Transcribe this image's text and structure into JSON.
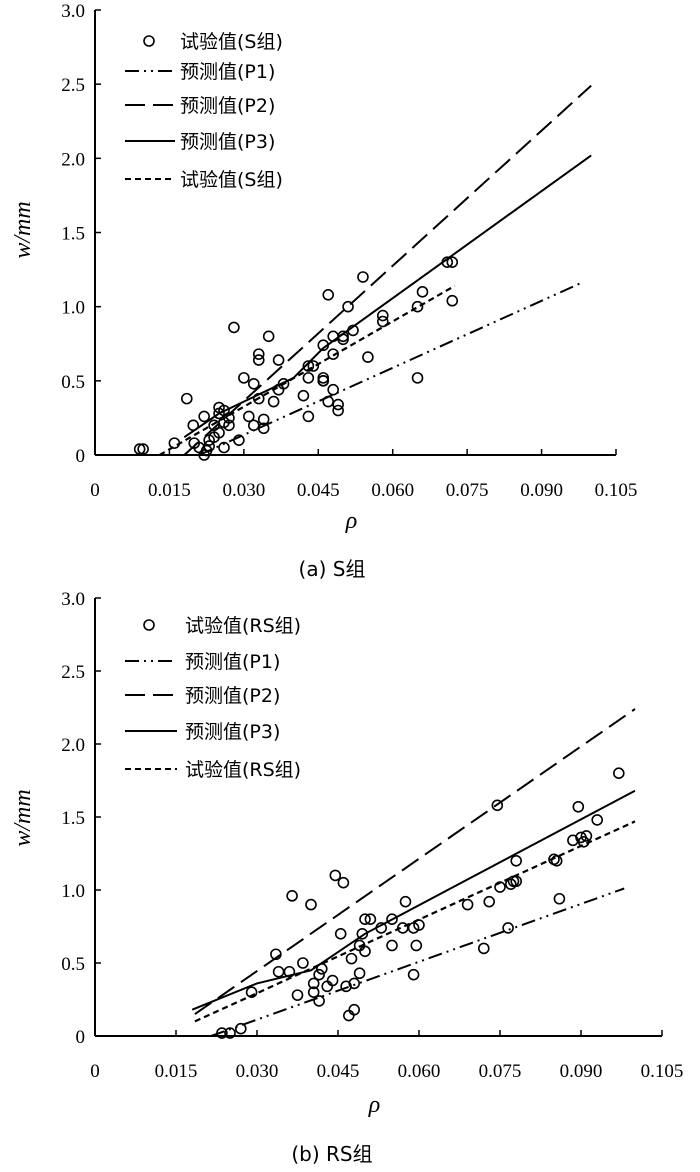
{
  "chart_data": [
    {
      "type": "scatter",
      "panel_id": "a",
      "caption": "(a) S组",
      "xlabel": "ρ",
      "ylabel": "w/mm",
      "xlim": [
        0,
        0.105
      ],
      "ylim": [
        0,
        3.0
      ],
      "x_ticks": [
        0,
        0.015,
        0.03,
        0.045,
        0.06,
        0.075,
        0.09,
        0.105
      ],
      "x_tick_labels": [
        "0",
        "0.015",
        "0.030",
        "0.045",
        "0.060",
        "0.075",
        "0.090",
        "0.105"
      ],
      "y_ticks": [
        0,
        0.5,
        1.0,
        1.5,
        2.0,
        2.5,
        3.0
      ],
      "y_tick_labels": [
        "0",
        "0.5",
        "1.0",
        "1.5",
        "2.0",
        "2.5",
        "3.0"
      ],
      "legend_position": "top-left",
      "series": [
        {
          "name": "试验值(S组)",
          "kind": "scatter",
          "marker": "open-circle",
          "points": [
            [
              0.009,
              0.04
            ],
            [
              0.0097,
              0.04
            ],
            [
              0.016,
              0.08
            ],
            [
              0.0185,
              0.38
            ],
            [
              0.0198,
              0.2
            ],
            [
              0.02,
              0.08
            ],
            [
              0.021,
              0.05
            ],
            [
              0.022,
              0.26
            ],
            [
              0.022,
              0.0
            ],
            [
              0.0225,
              0.03
            ],
            [
              0.023,
              0.1
            ],
            [
              0.023,
              0.06
            ],
            [
              0.024,
              0.12
            ],
            [
              0.024,
              0.2
            ],
            [
              0.025,
              0.15
            ],
            [
              0.025,
              0.28
            ],
            [
              0.025,
              0.32
            ],
            [
              0.026,
              0.22
            ],
            [
              0.026,
              0.3
            ],
            [
              0.026,
              0.05
            ],
            [
              0.027,
              0.2
            ],
            [
              0.027,
              0.25
            ],
            [
              0.028,
              0.86
            ],
            [
              0.029,
              0.1
            ],
            [
              0.03,
              0.52
            ],
            [
              0.031,
              0.26
            ],
            [
              0.032,
              0.48
            ],
            [
              0.032,
              0.2
            ],
            [
              0.033,
              0.68
            ],
            [
              0.033,
              0.64
            ],
            [
              0.033,
              0.38
            ],
            [
              0.034,
              0.24
            ],
            [
              0.034,
              0.18
            ],
            [
              0.035,
              0.8
            ],
            [
              0.036,
              0.36
            ],
            [
              0.037,
              0.64
            ],
            [
              0.037,
              0.44
            ],
            [
              0.038,
              0.48
            ],
            [
              0.042,
              0.4
            ],
            [
              0.043,
              0.6
            ],
            [
              0.043,
              0.52
            ],
            [
              0.043,
              0.26
            ],
            [
              0.044,
              0.6
            ],
            [
              0.046,
              0.74
            ],
            [
              0.046,
              0.5
            ],
            [
              0.046,
              0.52
            ],
            [
              0.046,
              0.5
            ],
            [
              0.047,
              1.08
            ],
            [
              0.047,
              0.36
            ],
            [
              0.048,
              0.8
            ],
            [
              0.048,
              0.44
            ],
            [
              0.048,
              0.68
            ],
            [
              0.049,
              0.34
            ],
            [
              0.049,
              0.3
            ],
            [
              0.05,
              0.78
            ],
            [
              0.05,
              0.8
            ],
            [
              0.051,
              1.0
            ],
            [
              0.052,
              0.84
            ],
            [
              0.054,
              1.2
            ],
            [
              0.055,
              0.66
            ],
            [
              0.058,
              0.9
            ],
            [
              0.058,
              0.94
            ],
            [
              0.065,
              1.0
            ],
            [
              0.066,
              1.1
            ],
            [
              0.065,
              0.52
            ],
            [
              0.071,
              1.3
            ],
            [
              0.072,
              1.3
            ],
            [
              0.072,
              1.04
            ]
          ]
        },
        {
          "name": "预测值(P1)",
          "kind": "line",
          "style": "dash-dot-dot",
          "points": [
            [
              0.021,
              0.0
            ],
            [
              0.098,
              1.16
            ]
          ]
        },
        {
          "name": "预测值(P2)",
          "kind": "line",
          "style": "long-dash",
          "points": [
            [
              0.018,
              0.0
            ],
            [
              0.1,
              2.49
            ]
          ]
        },
        {
          "name": "预测值(P3)",
          "kind": "line",
          "style": "solid",
          "points": [
            [
              0.018,
              0.12
            ],
            [
              0.025,
              0.28
            ],
            [
              0.04,
              0.52
            ],
            [
              0.046,
              0.72
            ],
            [
              0.1,
              2.02
            ]
          ]
        },
        {
          "name": "试验值(S组)",
          "kind": "line",
          "style": "short-dash",
          "points": [
            [
              0.013,
              0.0
            ],
            [
              0.0725,
              1.14
            ]
          ]
        }
      ]
    },
    {
      "type": "scatter",
      "panel_id": "b",
      "caption": "(b) RS组",
      "xlabel": "ρ",
      "ylabel": "w/mm",
      "xlim": [
        0,
        0.105
      ],
      "ylim": [
        0,
        3.0
      ],
      "x_ticks": [
        0,
        0.015,
        0.03,
        0.045,
        0.06,
        0.075,
        0.09,
        0.105
      ],
      "x_tick_labels": [
        "0",
        "0.015",
        "0.030",
        "0.045",
        "0.060",
        "0.075",
        "0.090",
        "0.105"
      ],
      "y_ticks": [
        0,
        0.5,
        1.0,
        1.5,
        2.0,
        2.5,
        3.0
      ],
      "y_tick_labels": [
        "0",
        "0.5",
        "1.0",
        "1.5",
        "2.0",
        "2.5",
        "3.0"
      ],
      "legend_position": "top-left",
      "series": [
        {
          "name": "试验值(RS组)",
          "kind": "scatter",
          "marker": "open-circle",
          "points": [
            [
              0.0235,
              0.02
            ],
            [
              0.025,
              0.02
            ],
            [
              0.027,
              0.05
            ],
            [
              0.029,
              0.3
            ],
            [
              0.0335,
              0.56
            ],
            [
              0.034,
              0.44
            ],
            [
              0.036,
              0.44
            ],
            [
              0.0365,
              0.96
            ],
            [
              0.0375,
              0.28
            ],
            [
              0.0385,
              0.5
            ],
            [
              0.04,
              0.9
            ],
            [
              0.0405,
              0.36
            ],
            [
              0.0405,
              0.3
            ],
            [
              0.0415,
              0.42
            ],
            [
              0.0415,
              0.24
            ],
            [
              0.042,
              0.46
            ],
            [
              0.043,
              0.34
            ],
            [
              0.044,
              0.38
            ],
            [
              0.0445,
              1.1
            ],
            [
              0.0455,
              0.7
            ],
            [
              0.046,
              1.05
            ],
            [
              0.0465,
              0.34
            ],
            [
              0.047,
              0.14
            ],
            [
              0.0475,
              0.53
            ],
            [
              0.048,
              0.36
            ],
            [
              0.048,
              0.18
            ],
            [
              0.049,
              0.43
            ],
            [
              0.049,
              0.62
            ],
            [
              0.0495,
              0.7
            ],
            [
              0.05,
              0.58
            ],
            [
              0.05,
              0.8
            ],
            [
              0.051,
              0.8
            ],
            [
              0.053,
              0.74
            ],
            [
              0.055,
              0.8
            ],
            [
              0.055,
              0.62
            ],
            [
              0.057,
              0.74
            ],
            [
              0.0575,
              0.92
            ],
            [
              0.059,
              0.42
            ],
            [
              0.059,
              0.74
            ],
            [
              0.0595,
              0.62
            ],
            [
              0.06,
              0.76
            ],
            [
              0.069,
              0.9
            ],
            [
              0.072,
              0.6
            ],
            [
              0.073,
              0.92
            ],
            [
              0.0745,
              1.58
            ],
            [
              0.075,
              1.02
            ],
            [
              0.0765,
              0.74
            ],
            [
              0.077,
              1.04
            ],
            [
              0.0775,
              1.06
            ],
            [
              0.078,
              1.2
            ],
            [
              0.078,
              1.06
            ],
            [
              0.085,
              1.21
            ],
            [
              0.0855,
              1.2
            ],
            [
              0.086,
              0.94
            ],
            [
              0.0885,
              1.34
            ],
            [
              0.0895,
              1.57
            ],
            [
              0.09,
              1.36
            ],
            [
              0.0905,
              1.33
            ],
            [
              0.091,
              1.37
            ],
            [
              0.093,
              1.48
            ],
            [
              0.097,
              1.8
            ]
          ]
        },
        {
          "name": "预测值(P1)",
          "kind": "line",
          "style": "dash-dot-dot",
          "points": [
            [
              0.0215,
              0.0
            ],
            [
              0.098,
              1.01
            ]
          ]
        },
        {
          "name": "预测值(P2)",
          "kind": "line",
          "style": "long-dash",
          "points": [
            [
              0.0185,
              0.15
            ],
            [
              0.1,
              2.24
            ]
          ]
        },
        {
          "name": "预测值(P3)",
          "kind": "line",
          "style": "solid",
          "points": [
            [
              0.018,
              0.18
            ],
            [
              0.03,
              0.36
            ],
            [
              0.04,
              0.45
            ],
            [
              0.05,
              0.7
            ],
            [
              0.1,
              1.68
            ]
          ]
        },
        {
          "name": "试验值(RS组)",
          "kind": "line",
          "style": "short-dash",
          "points": [
            [
              0.0185,
              0.1
            ],
            [
              0.1,
              1.47
            ]
          ]
        }
      ]
    }
  ]
}
